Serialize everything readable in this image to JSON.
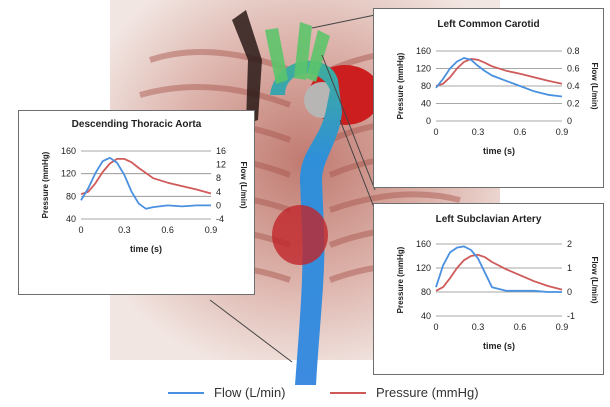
{
  "colors": {
    "flow": "#4a90e0",
    "pressure": "#d05a5a"
  },
  "legend": {
    "flow": "Flow (L/min)",
    "pressure": "Pressure (mmHg)"
  },
  "chart_data": [
    {
      "type": "line",
      "title": "Descending Thoracic Aorta",
      "xlabel": "time (s)",
      "ylabel_left": "Pressure (mmHg)",
      "ylabel_right": "Flow (L/min)",
      "xlim": [
        0,
        0.9
      ],
      "xticks": [
        "0",
        "0.3",
        "0.6",
        "0.9"
      ],
      "ylim_left": [
        40,
        160
      ],
      "yticks_left": [
        "40",
        "80",
        "120",
        "160"
      ],
      "ylim_right": [
        -4,
        16
      ],
      "yticks_right": [
        "-4",
        "0",
        "4",
        "8",
        "12",
        "16"
      ],
      "series": [
        {
          "name": "Pressure (mmHg)",
          "axis": "left",
          "x": [
            0,
            0.05,
            0.1,
            0.15,
            0.2,
            0.25,
            0.3,
            0.35,
            0.4,
            0.5,
            0.6,
            0.7,
            0.8,
            0.9
          ],
          "y": [
            84,
            88,
            103,
            123,
            138,
            146,
            146,
            140,
            130,
            112,
            104,
            98,
            92,
            85
          ]
        },
        {
          "name": "Flow (L/min)",
          "axis": "right",
          "x": [
            0,
            0.05,
            0.1,
            0.15,
            0.2,
            0.25,
            0.3,
            0.35,
            0.4,
            0.45,
            0.5,
            0.6,
            0.7,
            0.8,
            0.9
          ],
          "y": [
            1.5,
            5,
            9.5,
            13,
            14,
            12.5,
            9,
            4,
            0.5,
            -1,
            -0.5,
            0,
            -0.3,
            0,
            0
          ]
        }
      ]
    },
    {
      "type": "line",
      "title": "Left Common Carotid",
      "xlabel": "time (s)",
      "ylabel_left": "Pressure (mmHg)",
      "ylabel_right": "Flow (L/min)",
      "xlim": [
        0,
        0.9
      ],
      "xticks": [
        "0",
        "0.3",
        "0.6",
        "0.9"
      ],
      "ylim_left": [
        0,
        160
      ],
      "yticks_left": [
        "0",
        "40",
        "80",
        "120",
        "160"
      ],
      "ylim_right": [
        0,
        0.8
      ],
      "yticks_right": [
        "0",
        "0.2",
        "0.4",
        "0.6",
        "0.8"
      ],
      "series": [
        {
          "name": "Pressure (mmHg)",
          "axis": "left",
          "x": [
            0,
            0.05,
            0.1,
            0.15,
            0.2,
            0.25,
            0.3,
            0.35,
            0.4,
            0.5,
            0.6,
            0.7,
            0.8,
            0.9
          ],
          "y": [
            80,
            85,
            100,
            120,
            135,
            142,
            140,
            133,
            125,
            115,
            108,
            100,
            92,
            85
          ]
        },
        {
          "name": "Flow (L/min)",
          "axis": "right",
          "x": [
            0,
            0.05,
            0.1,
            0.15,
            0.2,
            0.25,
            0.3,
            0.35,
            0.4,
            0.5,
            0.6,
            0.7,
            0.8,
            0.9
          ],
          "y": [
            0.38,
            0.48,
            0.6,
            0.68,
            0.72,
            0.7,
            0.63,
            0.57,
            0.52,
            0.46,
            0.4,
            0.34,
            0.3,
            0.28
          ]
        }
      ]
    },
    {
      "type": "line",
      "title": "Left Subclavian Artery",
      "xlabel": "time (s)",
      "ylabel_left": "Pressure (mmHg)",
      "ylabel_right": "Flow (L/min)",
      "xlim": [
        0,
        0.9
      ],
      "xticks": [
        "0",
        "0.3",
        "0.6",
        "0.9"
      ],
      "ylim_left": [
        40,
        160
      ],
      "yticks_left": [
        "40",
        "80",
        "120",
        "160"
      ],
      "ylim_right": [
        -1,
        2
      ],
      "yticks_right": [
        "-1",
        "0",
        "1",
        "2"
      ],
      "series": [
        {
          "name": "Pressure (mmHg)",
          "axis": "left",
          "x": [
            0,
            0.05,
            0.1,
            0.15,
            0.2,
            0.25,
            0.3,
            0.35,
            0.4,
            0.5,
            0.6,
            0.7,
            0.8,
            0.9
          ],
          "y": [
            82,
            88,
            103,
            120,
            133,
            140,
            142,
            138,
            130,
            118,
            108,
            98,
            90,
            84
          ]
        },
        {
          "name": "Flow (L/min)",
          "axis": "right",
          "x": [
            0,
            0.05,
            0.1,
            0.15,
            0.2,
            0.25,
            0.3,
            0.35,
            0.4,
            0.5,
            0.6,
            0.7,
            0.8,
            0.9
          ],
          "y": [
            0.2,
            1.1,
            1.65,
            1.85,
            1.9,
            1.75,
            1.4,
            0.8,
            0.2,
            0.05,
            0.05,
            0.05,
            0,
            0
          ]
        }
      ]
    }
  ]
}
